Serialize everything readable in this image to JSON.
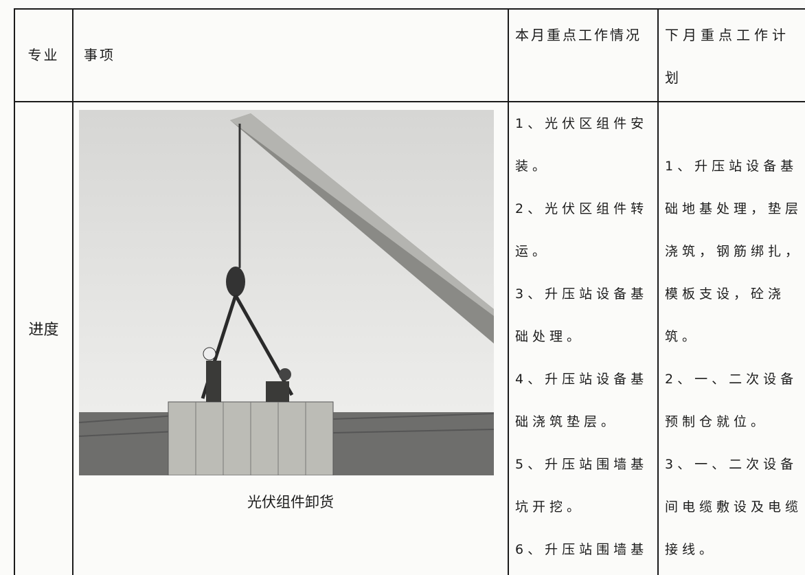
{
  "table": {
    "header": [
      "专业",
      "事项",
      "本月重点工作情况",
      "下月重点工作计划"
    ],
    "row": {
      "category": "进度",
      "photo_caption": "光伏组件卸货",
      "this_month": [
        "1、光伏区组件安装。",
        "2、光伏区组件转运。",
        "3、升压站设备基础处理。",
        "4、升压站设备基础浇筑垫层。",
        "5、升压站围墙基坑开挖。",
        "6、升压站围墙基"
      ],
      "next_month": [
        "1、升压站设备基础地基处理，垫层浇筑，钢筋绑扎，模板支设，砼浇筑。",
        "2、一、二次设备预制仓就位。",
        "3、一、二次设备间电缆敷设及电缆接线。"
      ]
    }
  }
}
